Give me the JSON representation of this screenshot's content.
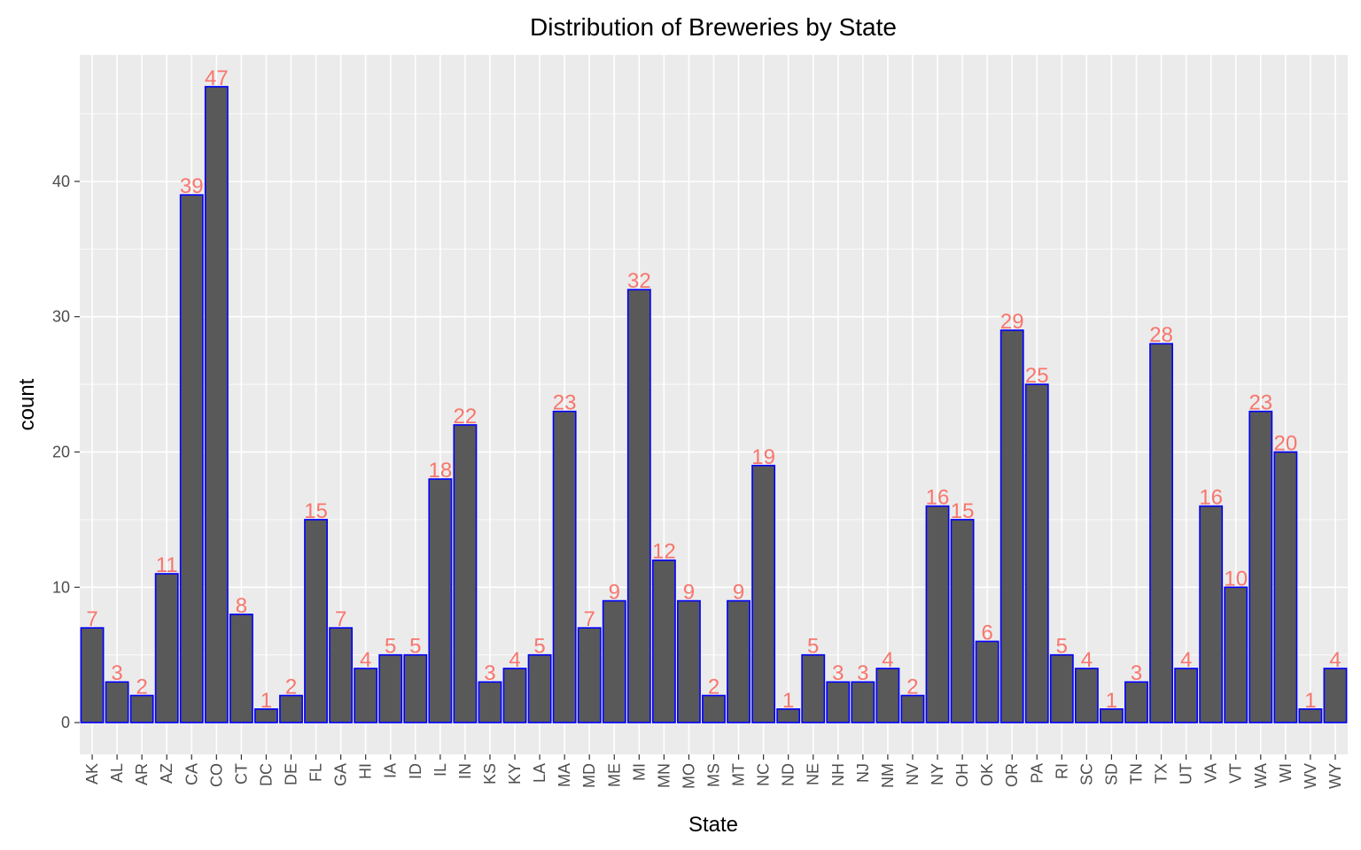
{
  "chart_data": {
    "type": "bar",
    "title": "Distribution of Breweries by State",
    "xlabel": "State",
    "ylabel": "count",
    "ylim": [
      -2.35,
      49.35
    ],
    "yticks": [
      0,
      10,
      20,
      30,
      40
    ],
    "grid": true,
    "categories": [
      "AK",
      "AL",
      "AR",
      "AZ",
      "CA",
      "CO",
      "CT",
      "DC",
      "DE",
      "FL",
      "GA",
      "HI",
      "IA",
      "ID",
      "IL",
      "IN",
      "KS",
      "KY",
      "LA",
      "MA",
      "MD",
      "ME",
      "MI",
      "MN",
      "MO",
      "MS",
      "MT",
      "NC",
      "ND",
      "NE",
      "NH",
      "NJ",
      "NM",
      "NV",
      "NY",
      "OH",
      "OK",
      "OR",
      "PA",
      "RI",
      "SC",
      "SD",
      "TN",
      "TX",
      "UT",
      "VA",
      "VT",
      "WA",
      "WI",
      "WV",
      "WY"
    ],
    "values": [
      7,
      3,
      2,
      11,
      39,
      47,
      8,
      1,
      2,
      15,
      7,
      4,
      5,
      5,
      18,
      22,
      3,
      4,
      5,
      23,
      7,
      9,
      32,
      12,
      9,
      2,
      9,
      19,
      1,
      5,
      3,
      3,
      4,
      2,
      16,
      15,
      6,
      29,
      25,
      5,
      4,
      1,
      3,
      28,
      4,
      16,
      10,
      23,
      20,
      1,
      4
    ],
    "colors": {
      "bar_fill": "#595959",
      "bar_stroke": "#0000ff",
      "label": "#f8766d",
      "panel_bg": "#ebebeb",
      "grid": "#ffffff"
    }
  }
}
